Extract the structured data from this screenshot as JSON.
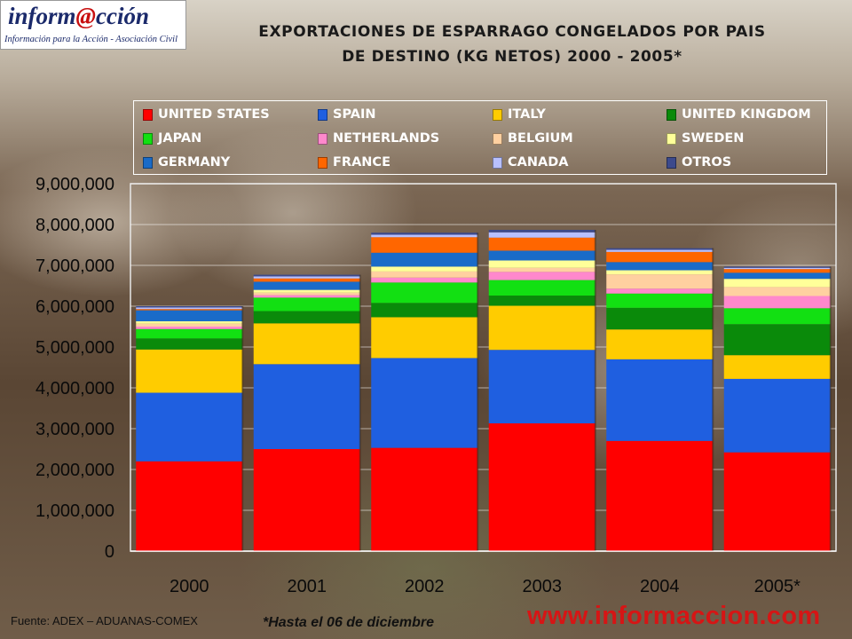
{
  "logo": {
    "brand_pre": "inform",
    "brand_at": "@",
    "brand_post": "cción",
    "tagline": "Información para la Acción - Asociación Civil"
  },
  "title_line1": "EXPORTACIONES DE ESPARRAGO CONGELADOS POR PAIS",
  "title_line2": "DE DESTINO (KG NETOS) 2000 - 2005*",
  "footer": {
    "source": "Fuente: ADEX – ADUANAS-COMEX",
    "note": "*Hasta el 06 de diciembre",
    "url": "www.informaccion.com"
  },
  "chart_data": {
    "type": "bar",
    "stacked": true,
    "title": "EXPORTACIONES DE ESPARRAGO CONGELADOS POR PAIS DE DESTINO (KG NETOS) 2000 - 2005*",
    "xlabel": "",
    "ylabel": "",
    "categories": [
      "2000",
      "2001",
      "2002",
      "2003",
      "2004",
      "2005*"
    ],
    "ylim": [
      0,
      9000000
    ],
    "yticks": [
      0,
      1000000,
      2000000,
      3000000,
      4000000,
      5000000,
      6000000,
      7000000,
      8000000,
      9000000
    ],
    "ytick_labels": [
      "0",
      "1,000,000",
      "2,000,000",
      "3,000,000",
      "4,000,000",
      "5,000,000",
      "6,000,000",
      "7,000,000",
      "8,000,000",
      "9,000,000"
    ],
    "grid": true,
    "legend_position": "top",
    "series": [
      {
        "name": "UNITED STATES",
        "color": "#ff0000",
        "values": [
          2200000,
          2500000,
          2530000,
          3130000,
          2700000,
          2420000
        ]
      },
      {
        "name": "SPAIN",
        "color": "#1f5fe0",
        "values": [
          1680000,
          2080000,
          2200000,
          1800000,
          2000000,
          1800000
        ]
      },
      {
        "name": "ITALY",
        "color": "#ffcc00",
        "values": [
          1060000,
          1000000,
          1000000,
          1080000,
          730000,
          580000
        ]
      },
      {
        "name": "UNITED KINGDOM",
        "color": "#0a8a0a",
        "values": [
          270000,
          300000,
          350000,
          250000,
          530000,
          760000
        ]
      },
      {
        "name": "JAPAN",
        "color": "#12e012",
        "values": [
          230000,
          330000,
          500000,
          380000,
          350000,
          390000
        ]
      },
      {
        "name": "NETHERLANDS",
        "color": "#ff88cc",
        "values": [
          60000,
          60000,
          120000,
          200000,
          120000,
          300000
        ]
      },
      {
        "name": "BELGIUM",
        "color": "#ffd0a0",
        "values": [
          70000,
          60000,
          150000,
          100000,
          350000,
          220000
        ]
      },
      {
        "name": "SWEDEN",
        "color": "#ffff99",
        "values": [
          60000,
          70000,
          120000,
          180000,
          100000,
          200000
        ]
      },
      {
        "name": "GERMANY",
        "color": "#1a6bc8",
        "values": [
          270000,
          200000,
          340000,
          240000,
          200000,
          150000
        ]
      },
      {
        "name": "FRANCE",
        "color": "#ff6600",
        "values": [
          30000,
          80000,
          380000,
          320000,
          250000,
          90000
        ]
      },
      {
        "name": "CANADA",
        "color": "#b8c0ff",
        "values": [
          40000,
          50000,
          60000,
          130000,
          50000,
          30000
        ]
      },
      {
        "name": "OTROS",
        "color": "#3c4a8c",
        "values": [
          30000,
          40000,
          50000,
          60000,
          40000,
          30000
        ]
      }
    ]
  }
}
